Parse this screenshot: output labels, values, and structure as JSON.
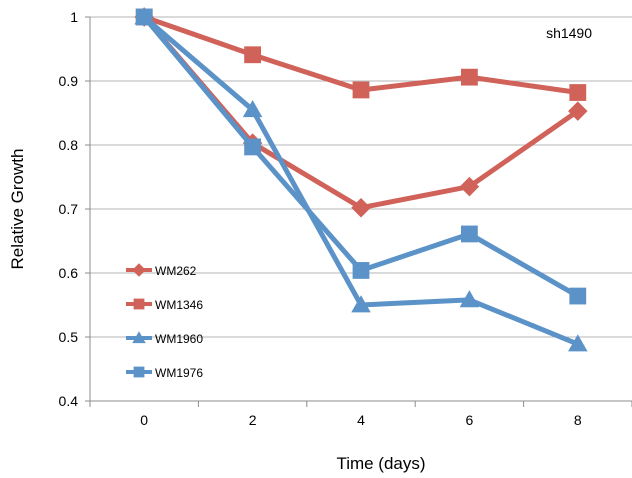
{
  "chart_data": {
    "type": "line",
    "title": "",
    "annotation": "sh1490",
    "xlabel": "Time (days)",
    "ylabel": "Relative Growth",
    "x": [
      0,
      2,
      4,
      6,
      8
    ],
    "xlim": [
      -1,
      9
    ],
    "ylim": [
      0.4,
      1
    ],
    "xticks": [
      "0",
      "2",
      "4",
      "6",
      "8"
    ],
    "yticks": [
      "0.4",
      "0.5",
      "0.6",
      "0.7",
      "0.8",
      "0.9",
      "1"
    ],
    "grid": "horizontal",
    "legend_position": "left",
    "series": [
      {
        "name": "WM262",
        "marker": "diamond",
        "color": "#d0625a",
        "values": [
          1.0,
          0.803,
          0.702,
          0.735,
          0.853
        ]
      },
      {
        "name": "WM1346",
        "marker": "square",
        "color": "#d0625a",
        "values": [
          1.0,
          0.941,
          0.886,
          0.906,
          0.882
        ]
      },
      {
        "name": "WM1960",
        "marker": "triangle",
        "color": "#5b93c8",
        "values": [
          1.0,
          0.855,
          0.55,
          0.558,
          0.489
        ]
      },
      {
        "name": "WM1976",
        "marker": "square",
        "color": "#5b93c8",
        "values": [
          1.0,
          0.797,
          0.604,
          0.661,
          0.564
        ]
      }
    ]
  }
}
